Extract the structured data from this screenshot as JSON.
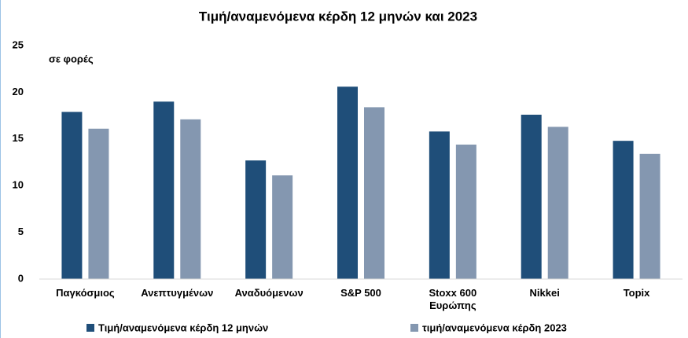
{
  "chart_data": {
    "type": "bar",
    "title": "Τιμή/αναμενόμενα κέρδη 12 μηνών και 2023",
    "annotation": "σε φορές",
    "categories": [
      "Παγκόσμιος",
      "Ανεπτυγμένων",
      "Αναδυόμενων",
      "S&P 500",
      "Stoxx 600 Ευρώπης",
      "Nikkei",
      "Topix"
    ],
    "series": [
      {
        "name": "Τιμή/αναμενόμενα κέρδη 12 μηνών",
        "color": "#1f4e79",
        "values": [
          17.9,
          19.0,
          12.7,
          20.6,
          15.8,
          17.6,
          14.8
        ]
      },
      {
        "name": "τιμή/αναμενόμενα κέρδη 2023",
        "color": "#8497b0",
        "values": [
          16.1,
          17.1,
          11.1,
          18.4,
          14.4,
          16.3,
          13.4
        ]
      }
    ],
    "ylim": [
      0,
      25
    ],
    "yticks": [
      0,
      5,
      10,
      15,
      20,
      25
    ],
    "grid": false,
    "legend": "bottom"
  }
}
